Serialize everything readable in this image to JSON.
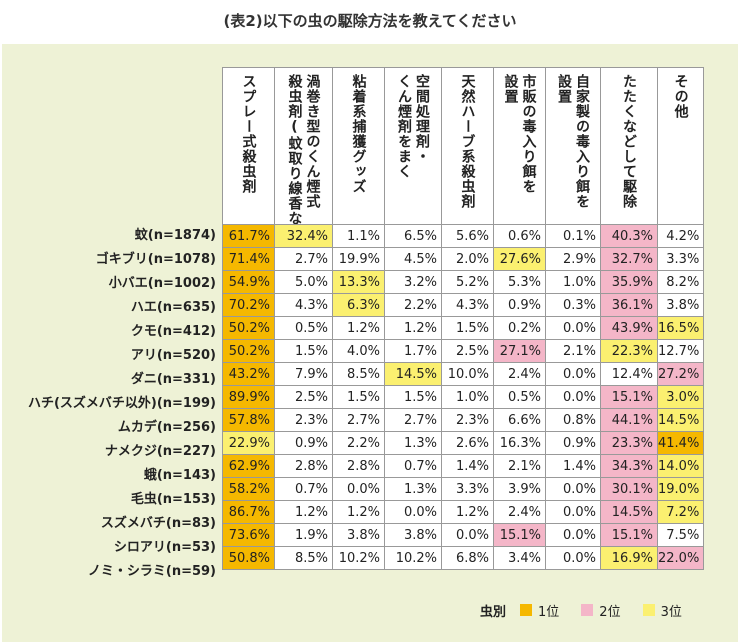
{
  "title": "(表2)以下の虫の駆除方法を教えてください",
  "chart_data": {
    "type": "table",
    "columns": [
      "スプレー式殺虫剤",
      "渦巻き型のくん煙式\n殺虫剤(蚊取り線香など)",
      "粘着系捕獲グッズ",
      "空間処理剤・\nくん煙剤をまく",
      "天然ハーブ系殺虫剤",
      "市販の毒入り餌を\n設置",
      "自家製の毒入り餌を\n設置",
      "たたくなどして駆除",
      "その他"
    ],
    "rows": [
      {
        "label": "蚊(n=1874)",
        "values": [
          "61.7%",
          "32.4%",
          "1.1%",
          "6.5%",
          "5.6%",
          "0.6%",
          "0.1%",
          "40.3%",
          "4.2%"
        ],
        "ranks": [
          1,
          3,
          0,
          0,
          0,
          0,
          0,
          2,
          0
        ]
      },
      {
        "label": "ゴキブリ(n=1078)",
        "values": [
          "71.4%",
          "2.7%",
          "19.9%",
          "4.5%",
          "2.0%",
          "27.6%",
          "2.9%",
          "32.7%",
          "3.3%"
        ],
        "ranks": [
          1,
          0,
          0,
          0,
          0,
          3,
          0,
          2,
          0
        ]
      },
      {
        "label": "小バエ(n=1002)",
        "values": [
          "54.9%",
          "5.0%",
          "13.3%",
          "3.2%",
          "5.2%",
          "5.3%",
          "1.0%",
          "35.9%",
          "8.2%"
        ],
        "ranks": [
          1,
          0,
          3,
          0,
          0,
          0,
          0,
          2,
          0
        ]
      },
      {
        "label": "ハエ(n=635)",
        "values": [
          "70.2%",
          "4.3%",
          "6.3%",
          "2.2%",
          "4.3%",
          "0.9%",
          "0.3%",
          "36.1%",
          "3.8%"
        ],
        "ranks": [
          1,
          0,
          3,
          0,
          0,
          0,
          0,
          2,
          0
        ]
      },
      {
        "label": "クモ(n=412)",
        "values": [
          "50.2%",
          "0.5%",
          "1.2%",
          "1.2%",
          "1.5%",
          "0.2%",
          "0.0%",
          "43.9%",
          "16.5%"
        ],
        "ranks": [
          1,
          0,
          0,
          0,
          0,
          0,
          0,
          2,
          3
        ]
      },
      {
        "label": "アリ(n=520)",
        "values": [
          "50.2%",
          "1.5%",
          "4.0%",
          "1.7%",
          "2.5%",
          "27.1%",
          "2.1%",
          "22.3%",
          "12.7%"
        ],
        "ranks": [
          1,
          0,
          0,
          0,
          0,
          2,
          0,
          3,
          0
        ]
      },
      {
        "label": "ダニ(n=331)",
        "values": [
          "43.2%",
          "7.9%",
          "8.5%",
          "14.5%",
          "10.0%",
          "2.4%",
          "0.0%",
          "12.4%",
          "27.2%"
        ],
        "ranks": [
          1,
          0,
          0,
          3,
          0,
          0,
          0,
          0,
          2
        ]
      },
      {
        "label": "ハチ(スズメバチ以外)(n=199)",
        "values": [
          "89.9%",
          "2.5%",
          "1.5%",
          "1.5%",
          "1.0%",
          "0.5%",
          "0.0%",
          "15.1%",
          "3.0%"
        ],
        "ranks": [
          1,
          0,
          0,
          0,
          0,
          0,
          0,
          2,
          3
        ]
      },
      {
        "label": "ムカデ(n=256)",
        "values": [
          "57.8%",
          "2.3%",
          "2.7%",
          "2.7%",
          "2.3%",
          "6.6%",
          "0.8%",
          "44.1%",
          "14.5%"
        ],
        "ranks": [
          1,
          0,
          0,
          0,
          0,
          0,
          0,
          2,
          3
        ]
      },
      {
        "label": "ナメクジ(n=227)",
        "values": [
          "22.9%",
          "0.9%",
          "2.2%",
          "1.3%",
          "2.6%",
          "16.3%",
          "0.9%",
          "23.3%",
          "41.4%"
        ],
        "ranks": [
          3,
          0,
          0,
          0,
          0,
          0,
          0,
          2,
          1
        ]
      },
      {
        "label": "蛾(n=143)",
        "values": [
          "62.9%",
          "2.8%",
          "2.8%",
          "0.7%",
          "1.4%",
          "2.1%",
          "1.4%",
          "34.3%",
          "14.0%"
        ],
        "ranks": [
          1,
          0,
          0,
          0,
          0,
          0,
          0,
          2,
          3
        ]
      },
      {
        "label": "毛虫(n=153)",
        "values": [
          "58.2%",
          "0.7%",
          "0.0%",
          "1.3%",
          "3.3%",
          "3.9%",
          "0.0%",
          "30.1%",
          "19.0%"
        ],
        "ranks": [
          1,
          0,
          0,
          0,
          0,
          0,
          0,
          2,
          3
        ]
      },
      {
        "label": "スズメバチ(n=83)",
        "values": [
          "86.7%",
          "1.2%",
          "1.2%",
          "0.0%",
          "1.2%",
          "2.4%",
          "0.0%",
          "14.5%",
          "7.2%"
        ],
        "ranks": [
          1,
          0,
          0,
          0,
          0,
          0,
          0,
          2,
          3
        ]
      },
      {
        "label": "シロアリ(n=53)",
        "values": [
          "73.6%",
          "1.9%",
          "3.8%",
          "3.8%",
          "0.0%",
          "15.1%",
          "0.0%",
          "15.1%",
          "7.5%"
        ],
        "ranks": [
          1,
          0,
          0,
          0,
          0,
          2,
          0,
          2,
          0
        ]
      },
      {
        "label": "ノミ・シラミ(n=59)",
        "values": [
          "50.8%",
          "8.5%",
          "10.2%",
          "10.2%",
          "6.8%",
          "3.4%",
          "0.0%",
          "16.9%",
          "22.0%"
        ],
        "ranks": [
          1,
          0,
          0,
          0,
          0,
          0,
          0,
          3,
          2
        ]
      }
    ],
    "legend": {
      "label": "虫別",
      "items": [
        {
          "name": "1位",
          "color": "#f5b800"
        },
        {
          "name": "2位",
          "color": "#f4b6c8"
        },
        {
          "name": "3位",
          "color": "#fbf070"
        }
      ]
    }
  }
}
